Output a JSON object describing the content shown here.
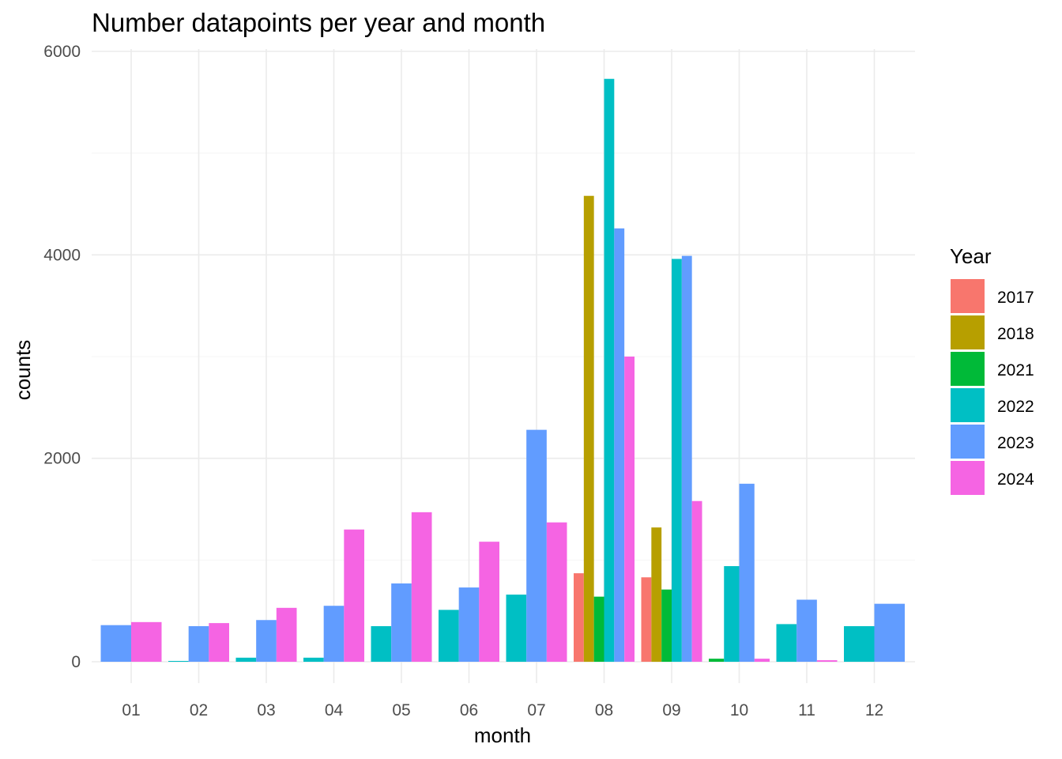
{
  "chart_data": {
    "type": "bar",
    "title": "Number datapoints per year and month",
    "xlabel": "month",
    "ylabel": "counts",
    "categories": [
      "01",
      "02",
      "03",
      "04",
      "05",
      "06",
      "07",
      "08",
      "09",
      "10",
      "11",
      "12"
    ],
    "ylim": [
      -200,
      6000
    ],
    "yticks": [
      0,
      2000,
      4000,
      6000
    ],
    "grid": true,
    "legend": {
      "title": "Year",
      "position": "right"
    },
    "series": [
      {
        "name": "2017",
        "color": "#F8766D",
        "values": [
          null,
          null,
          null,
          null,
          null,
          null,
          null,
          870,
          830,
          null,
          null,
          null
        ]
      },
      {
        "name": "2018",
        "color": "#B79F00",
        "values": [
          null,
          null,
          null,
          null,
          null,
          null,
          null,
          4580,
          1320,
          null,
          null,
          null
        ]
      },
      {
        "name": "2021",
        "color": "#00BA38",
        "values": [
          null,
          null,
          null,
          null,
          null,
          null,
          null,
          640,
          710,
          30,
          null,
          null
        ]
      },
      {
        "name": "2022",
        "color": "#00BFC4",
        "values": [
          null,
          8,
          40,
          40,
          350,
          510,
          660,
          5730,
          3960,
          940,
          370,
          350
        ]
      },
      {
        "name": "2023",
        "color": "#619CFF",
        "values": [
          360,
          350,
          410,
          550,
          770,
          730,
          2280,
          4260,
          3990,
          1750,
          610,
          570
        ]
      },
      {
        "name": "2024",
        "color": "#F564E3",
        "values": [
          390,
          380,
          530,
          1300,
          1470,
          1180,
          1370,
          3000,
          1580,
          30,
          15,
          null
        ]
      }
    ]
  }
}
